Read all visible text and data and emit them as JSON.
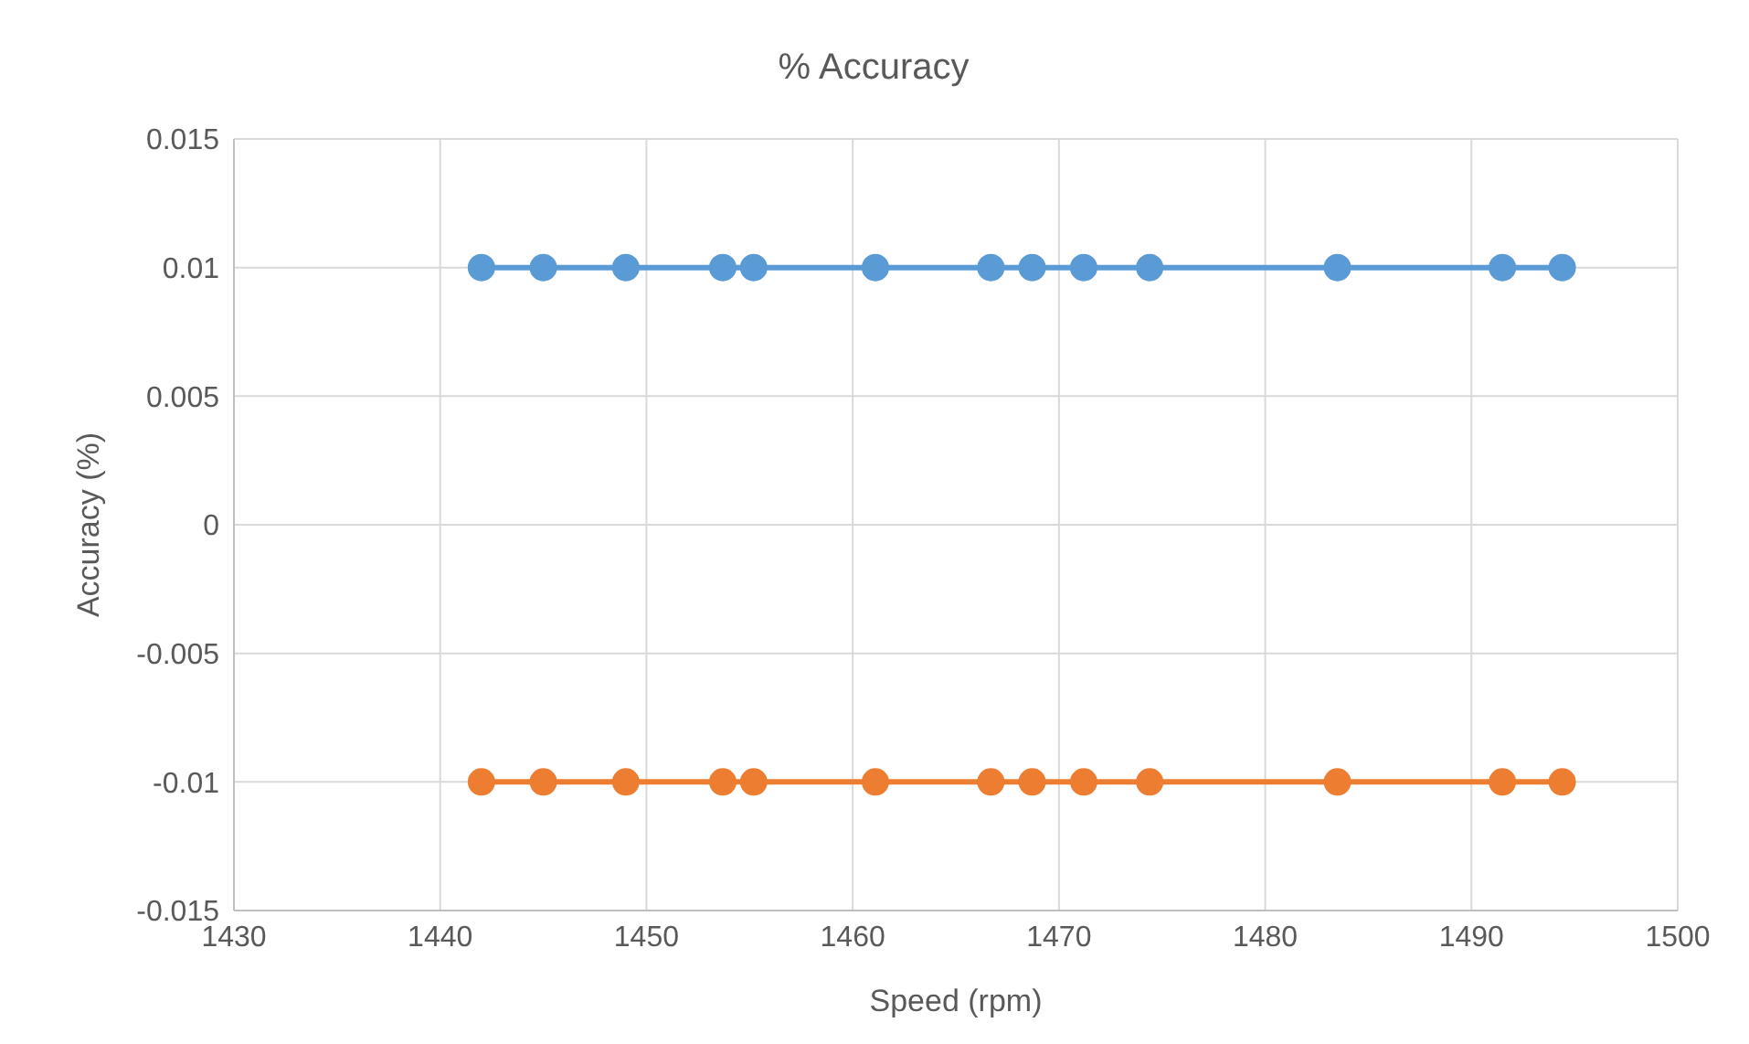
{
  "chart_data": {
    "type": "line",
    "title": "% Accuracy",
    "xlabel": "Speed (rpm)",
    "ylabel": "Accuracy (%)",
    "x": [
      1442,
      1445,
      1449,
      1453.7,
      1455.2,
      1461.1,
      1466.7,
      1468.7,
      1471.2,
      1474.4,
      1483.5,
      1491.5,
      1494.4
    ],
    "series": [
      {
        "color": "#5b9bd5",
        "values": [
          0.01,
          0.01,
          0.01,
          0.01,
          0.01,
          0.01,
          0.01,
          0.01,
          0.01,
          0.01,
          0.01,
          0.01,
          0.01
        ]
      },
      {
        "color": "#ed7d31",
        "values": [
          -0.01,
          -0.01,
          -0.01,
          -0.01,
          -0.01,
          -0.01,
          -0.01,
          -0.01,
          -0.01,
          -0.01,
          -0.01,
          -0.01,
          -0.01
        ]
      }
    ],
    "xlim": [
      1430,
      1500
    ],
    "xticks": [
      1430,
      1440,
      1450,
      1460,
      1470,
      1480,
      1490,
      1500
    ],
    "ylim": [
      -0.015,
      0.015
    ],
    "yticks": [
      -0.015,
      -0.01,
      -0.005,
      0,
      0.005,
      0.01,
      0.015
    ],
    "grid": true,
    "legend": false,
    "marker": "circle",
    "line_style": "solid"
  }
}
